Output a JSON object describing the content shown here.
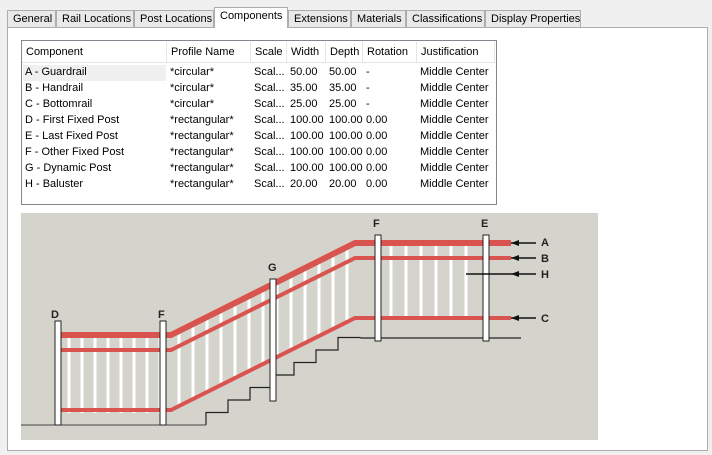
{
  "tabs": [
    {
      "label": "General"
    },
    {
      "label": "Rail Locations"
    },
    {
      "label": "Post Locations"
    },
    {
      "label": "Components",
      "selected": true
    },
    {
      "label": "Extensions"
    },
    {
      "label": "Materials"
    },
    {
      "label": "Classifications"
    },
    {
      "label": "Display Properties"
    }
  ],
  "table": {
    "columns": [
      "Component",
      "Profile Name",
      "Scale",
      "Width",
      "Depth",
      "Rotation",
      "Justification"
    ],
    "rows": [
      [
        "A - Guardrail",
        "*circular*",
        "Scal...",
        "50.00",
        "50.00",
        "-",
        "Middle Center"
      ],
      [
        "B - Handrail",
        "*circular*",
        "Scal...",
        "35.00",
        "35.00",
        "-",
        "Middle Center"
      ],
      [
        "C - Bottomrail",
        "*circular*",
        "Scal...",
        "25.00",
        "25.00",
        "-",
        "Middle Center"
      ],
      [
        "D - First Fixed Post",
        "*rectangular*",
        "Scal...",
        "100.00",
        "100.00",
        "0.00",
        "Middle Center"
      ],
      [
        "E - Last Fixed Post",
        "*rectangular*",
        "Scal...",
        "100.00",
        "100.00",
        "0.00",
        "Middle Center"
      ],
      [
        "F - Other Fixed Post",
        "*rectangular*",
        "Scal...",
        "100.00",
        "100.00",
        "0.00",
        "Middle Center"
      ],
      [
        "G - Dynamic Post",
        "*rectangular*",
        "Scal...",
        "100.00",
        "100.00",
        "0.00",
        "Middle Center"
      ],
      [
        "H - Baluster",
        "*rectangular*",
        "Scal...",
        "20.00",
        "20.00",
        "0.00",
        "Middle Center"
      ]
    ]
  },
  "diagram": {
    "labels": {
      "A": "A",
      "B": "B",
      "C": "C",
      "D": "D",
      "E": "E",
      "F": "F",
      "G": "G",
      "H": "H"
    },
    "rail_color": "#d9534f",
    "background": "#d5d4cc"
  }
}
